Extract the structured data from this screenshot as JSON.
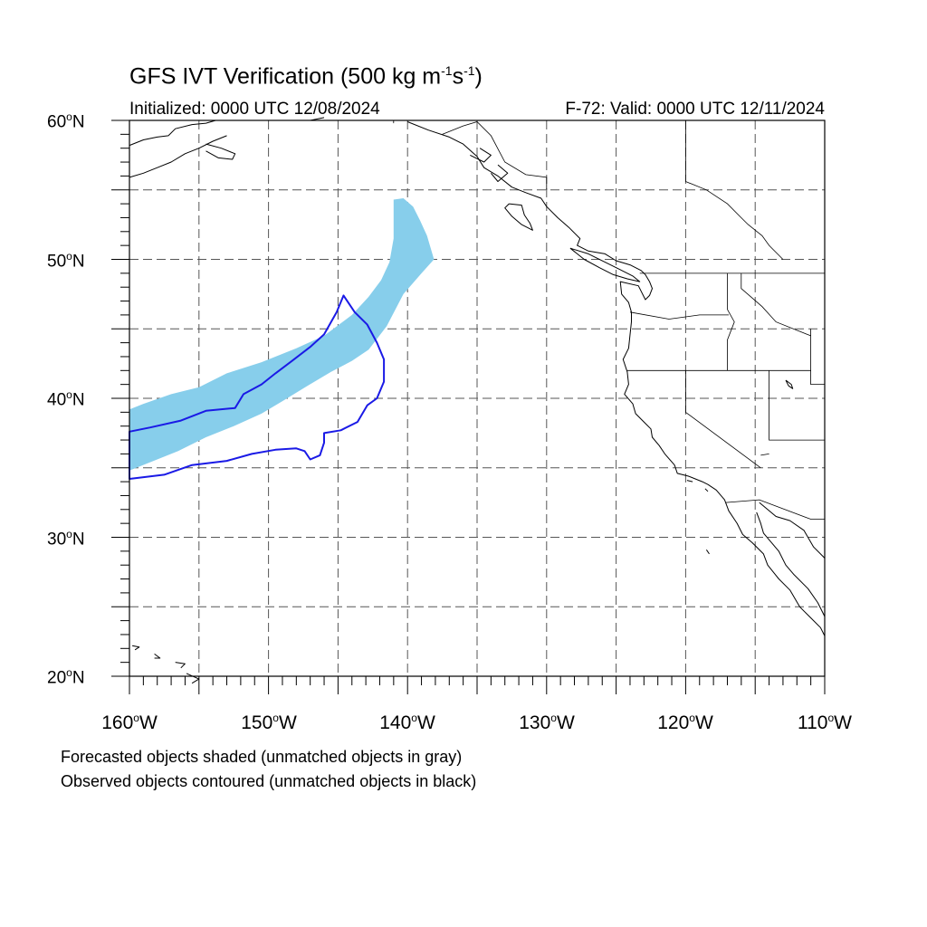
{
  "title": {
    "main": "GFS IVT Verification (500 kg m",
    "exp1": "-1",
    "mid": "s",
    "exp2": "-1",
    "end": ")"
  },
  "init_text": "Initialized: 0000 UTC 12/08/2024",
  "valid_text": "F-72: Valid: 0000 UTC 12/11/2024",
  "degree_symbol": "o",
  "lat_labels": [
    {
      "num": "60",
      "hemi": "N"
    },
    {
      "num": "50",
      "hemi": "N"
    },
    {
      "num": "40",
      "hemi": "N"
    },
    {
      "num": "30",
      "hemi": "N"
    },
    {
      "num": "20",
      "hemi": "N"
    }
  ],
  "lon_labels": [
    {
      "num": "160",
      "hemi": "W"
    },
    {
      "num": "150",
      "hemi": "W"
    },
    {
      "num": "140",
      "hemi": "W"
    },
    {
      "num": "130",
      "hemi": "W"
    },
    {
      "num": "120",
      "hemi": "W"
    },
    {
      "num": "110",
      "hemi": "W"
    }
  ],
  "notes": {
    "forecast": "Forecasted objects shaded (unmatched objects in gray)",
    "observed": "Observed objects contoured (unmatched objects in black)"
  },
  "map_extent": {
    "lon_min": -160,
    "lon_max": -110,
    "lat_min": 20,
    "lat_max": 60
  },
  "colors": {
    "forecast_fill": "#87ceeb",
    "observed_contour": "#1a1ae6",
    "coastline": "#000000",
    "grid": "#555555"
  },
  "forecast_object": [
    [
      -141.0,
      54.3
    ],
    [
      -140.3,
      54.4
    ],
    [
      -139.6,
      53.8
    ],
    [
      -139.1,
      52.8
    ],
    [
      -138.6,
      51.7
    ],
    [
      -138.1,
      50.0
    ],
    [
      -139.0,
      49.0
    ],
    [
      -140.3,
      47.5
    ],
    [
      -141.5,
      45.2
    ],
    [
      -142.8,
      43.5
    ],
    [
      -144.0,
      42.7
    ],
    [
      -145.5,
      41.9
    ],
    [
      -147.2,
      40.9
    ],
    [
      -149.0,
      39.8
    ],
    [
      -150.5,
      38.9
    ],
    [
      -152.5,
      38.0
    ],
    [
      -154.5,
      37.2
    ],
    [
      -156.5,
      36.2
    ],
    [
      -158.0,
      35.6
    ],
    [
      -160.0,
      34.8
    ],
    [
      -160.0,
      39.2
    ],
    [
      -159.0,
      39.6
    ],
    [
      -157.0,
      40.3
    ],
    [
      -155.0,
      40.8
    ],
    [
      -153.0,
      41.8
    ],
    [
      -150.5,
      42.6
    ],
    [
      -148.0,
      43.6
    ],
    [
      -146.0,
      44.5
    ],
    [
      -144.0,
      46.0
    ],
    [
      -142.8,
      47.3
    ],
    [
      -141.9,
      48.5
    ],
    [
      -141.3,
      49.8
    ],
    [
      -141.0,
      51.5
    ]
  ],
  "observed_object": [
    [
      -144.6,
      47.4
    ],
    [
      -143.8,
      46.2
    ],
    [
      -142.9,
      45.3
    ],
    [
      -142.2,
      44.0
    ],
    [
      -141.7,
      42.8
    ],
    [
      -141.7,
      41.2
    ],
    [
      -142.2,
      40.0
    ],
    [
      -142.9,
      39.5
    ],
    [
      -143.6,
      38.3
    ],
    [
      -144.8,
      37.7
    ],
    [
      -146.0,
      37.5
    ],
    [
      -146.0,
      36.8
    ],
    [
      -146.3,
      35.9
    ],
    [
      -147.0,
      35.6
    ],
    [
      -147.4,
      36.2
    ],
    [
      -148.0,
      36.4
    ],
    [
      -149.5,
      36.3
    ],
    [
      -151.2,
      36.0
    ],
    [
      -153.0,
      35.5
    ],
    [
      -155.5,
      35.2
    ],
    [
      -157.5,
      34.5
    ],
    [
      -160.0,
      34.2
    ],
    [
      -160.0,
      37.6
    ],
    [
      -158.5,
      37.9
    ],
    [
      -156.3,
      38.4
    ],
    [
      -154.5,
      39.1
    ],
    [
      -152.4,
      39.3
    ],
    [
      -151.8,
      40.3
    ],
    [
      -150.5,
      41.0
    ],
    [
      -149.5,
      41.8
    ],
    [
      -148.3,
      42.7
    ],
    [
      -147.0,
      43.7
    ],
    [
      -146.0,
      44.6
    ],
    [
      -145.1,
      46.2
    ]
  ],
  "coastlines": [
    [
      [
        -160,
        58.2
      ],
      [
        -159,
        58.6
      ],
      [
        -158.0,
        58.8
      ],
      [
        -157.2,
        58.9
      ],
      [
        -156.7,
        59.4
      ],
      [
        -155.5,
        59.7
      ],
      [
        -154.5,
        59.8
      ],
      [
        -153.8,
        60.0
      ]
    ],
    [
      [
        -160,
        55.9
      ],
      [
        -159,
        56.2
      ],
      [
        -158.0,
        56.6
      ],
      [
        -157.0,
        57.0
      ],
      [
        -156.0,
        57.6
      ],
      [
        -155.0,
        58.0
      ],
      [
        -154.0,
        58.5
      ],
      [
        -153.0,
        58.9
      ]
    ],
    [
      [
        -154.5,
        58.3
      ],
      [
        -153.4,
        58.0
      ],
      [
        -152.4,
        57.6
      ],
      [
        -152.6,
        57.2
      ],
      [
        -153.6,
        57.3
      ],
      [
        -154.5,
        57.8
      ]
    ],
    [
      [
        -149.0,
        60.0
      ],
      [
        -147.0,
        60.0
      ],
      [
        -146.0,
        60.2
      ]
    ],
    [
      [
        -140.0,
        59.9
      ],
      [
        -138.5,
        59.3
      ],
      [
        -137.0,
        58.8
      ],
      [
        -136.0,
        58.3
      ],
      [
        -135.0,
        57.4
      ],
      [
        -134.5,
        56.6
      ],
      [
        -133.5,
        56.0
      ],
      [
        -132.5,
        55.2
      ],
      [
        -131.5,
        54.8
      ],
      [
        -130.4,
        54.4
      ],
      [
        -130.0,
        53.8
      ],
      [
        -129.2,
        53.0
      ],
      [
        -128.4,
        52.3
      ],
      [
        -127.6,
        51.5
      ],
      [
        -127.8,
        51.0
      ],
      [
        -127.0,
        50.6
      ],
      [
        -125.8,
        50.4
      ],
      [
        -125.0,
        49.9
      ],
      [
        -124.0,
        49.6
      ],
      [
        -123.2,
        49.2
      ],
      [
        -122.9,
        48.9
      ],
      [
        -122.6,
        48.4
      ],
      [
        -122.4,
        47.9
      ],
      [
        -122.6,
        47.4
      ],
      [
        -122.9,
        47.1
      ],
      [
        -123.4,
        48.1
      ],
      [
        -124.7,
        48.4
      ],
      [
        -124.6,
        47.5
      ],
      [
        -124.1,
        46.9
      ],
      [
        -123.9,
        46.2
      ],
      [
        -123.9,
        45.5
      ],
      [
        -124.0,
        44.6
      ],
      [
        -124.1,
        43.6
      ],
      [
        -124.5,
        42.8
      ],
      [
        -124.2,
        41.9
      ],
      [
        -124.1,
        41.0
      ],
      [
        -124.4,
        40.3
      ],
      [
        -123.8,
        39.6
      ],
      [
        -123.6,
        38.9
      ],
      [
        -123.0,
        38.3
      ],
      [
        -122.5,
        37.8
      ],
      [
        -122.4,
        37.2
      ],
      [
        -121.9,
        36.6
      ],
      [
        -121.5,
        36.0
      ],
      [
        -120.8,
        35.2
      ],
      [
        -120.6,
        34.6
      ],
      [
        -119.8,
        34.4
      ],
      [
        -118.8,
        34.0
      ],
      [
        -118.4,
        33.8
      ],
      [
        -117.8,
        33.4
      ],
      [
        -117.2,
        32.7
      ],
      [
        -116.9,
        31.9
      ],
      [
        -116.3,
        31.0
      ],
      [
        -115.9,
        30.2
      ],
      [
        -115.2,
        29.6
      ],
      [
        -114.4,
        28.8
      ],
      [
        -114.1,
        28.0
      ],
      [
        -113.3,
        27.0
      ],
      [
        -112.5,
        26.2
      ],
      [
        -111.8,
        25.0
      ],
      [
        -111.0,
        24.2
      ],
      [
        -110.3,
        23.5
      ],
      [
        -110.0,
        22.9
      ]
    ],
    [
      [
        -114.9,
        31.8
      ],
      [
        -114.6,
        31.0
      ],
      [
        -114.4,
        30.3
      ],
      [
        -113.3,
        29.0
      ],
      [
        -112.8,
        28.0
      ],
      [
        -112.2,
        27.3
      ],
      [
        -111.2,
        26.3
      ],
      [
        -110.5,
        25.3
      ],
      [
        -110.0,
        24.3
      ]
    ],
    [
      [
        -114.7,
        32.5
      ],
      [
        -113.5,
        31.5
      ],
      [
        -112.5,
        31.2
      ],
      [
        -111.5,
        30.5
      ],
      [
        -110.8,
        29.3
      ],
      [
        -110.0,
        28.5
      ]
    ],
    [
      [
        -128.3,
        50.8
      ],
      [
        -127.0,
        50.4
      ],
      [
        -125.8,
        49.8
      ],
      [
        -124.8,
        49.3
      ],
      [
        -123.8,
        48.8
      ],
      [
        -123.3,
        48.4
      ],
      [
        -124.2,
        48.6
      ],
      [
        -125.2,
        48.9
      ],
      [
        -126.2,
        49.4
      ],
      [
        -127.3,
        50.0
      ],
      [
        -128.3,
        50.8
      ]
    ],
    [
      [
        -132.7,
        54.0
      ],
      [
        -131.8,
        53.9
      ],
      [
        -131.6,
        53.2
      ],
      [
        -131.2,
        52.6
      ],
      [
        -131.0,
        52.1
      ],
      [
        -131.8,
        52.5
      ],
      [
        -132.5,
        53.1
      ],
      [
        -133.0,
        53.7
      ],
      [
        -132.7,
        54.0
      ]
    ],
    [
      [
        -134.8,
        58.0
      ],
      [
        -134.0,
        57.5
      ],
      [
        -134.5,
        57.0
      ],
      [
        -135.5,
        57.5
      ]
    ],
    [
      [
        -133.5,
        56.8
      ],
      [
        -132.8,
        56.2
      ],
      [
        -133.5,
        55.6
      ],
      [
        -134.0,
        56.2
      ]
    ],
    [
      [
        -155.9,
        20.2
      ],
      [
        -155.0,
        19.8
      ],
      [
        -155.5,
        19.5
      ]
    ],
    [
      [
        -156.7,
        21.0
      ],
      [
        -156.0,
        20.9
      ],
      [
        -156.3,
        20.6
      ]
    ],
    [
      [
        -158.2,
        21.6
      ],
      [
        -157.8,
        21.3
      ],
      [
        -158.2,
        21.3
      ]
    ],
    [
      [
        -159.8,
        22.2
      ],
      [
        -159.3,
        22.1
      ],
      [
        -159.6,
        21.9
      ]
    ],
    [
      [
        -118.6,
        33.5
      ],
      [
        -118.4,
        33.3
      ]
    ],
    [
      [
        -119.9,
        34.1
      ],
      [
        -119.5,
        34.0
      ]
    ],
    [
      [
        -118.5,
        29.1
      ],
      [
        -118.3,
        28.8
      ]
    ],
    [
      [
        -112.8,
        41.3
      ],
      [
        -112.4,
        41.0
      ],
      [
        -112.3,
        40.7
      ],
      [
        -112.6,
        40.9
      ],
      [
        -112.8,
        41.3
      ]
    ]
  ],
  "borders": [
    [
      [
        -123.3,
        49.0
      ],
      [
        -110,
        49.0
      ]
    ],
    [
      [
        -124.0,
        46.2
      ],
      [
        -121.2,
        45.7
      ],
      [
        -119.0,
        46.0
      ],
      [
        -116.9,
        46.0
      ]
    ],
    [
      [
        -124.2,
        42.0
      ],
      [
        -111.0,
        42.0
      ]
    ],
    [
      [
        -120.0,
        42.0
      ],
      [
        -120.0,
        39.0
      ],
      [
        -114.6,
        35.0
      ]
    ],
    [
      [
        -117.0,
        49.0
      ],
      [
        -117.0,
        46.4
      ],
      [
        -116.5,
        45.5
      ],
      [
        -117.0,
        44.2
      ],
      [
        -117.0,
        42.0
      ]
    ],
    [
      [
        -116.0,
        49.0
      ],
      [
        -116.0,
        47.9
      ],
      [
        -114.5,
        46.6
      ],
      [
        -113.5,
        45.5
      ],
      [
        -111.0,
        44.5
      ]
    ],
    [
      [
        -114.0,
        42.0
      ],
      [
        -114.0,
        37.0
      ],
      [
        -110,
        37.0
      ]
    ],
    [
      [
        -114.0,
        36.0
      ],
      [
        -114.6,
        35.9
      ]
    ],
    [
      [
        -111.0,
        45.0
      ],
      [
        -111.0,
        41.0
      ],
      [
        -110,
        41.0
      ]
    ],
    [
      [
        -120.0,
        60.0
      ],
      [
        -120.0,
        55.6
      ]
    ],
    [
      [
        -120.0,
        55.6
      ],
      [
        -118.5,
        55.0
      ],
      [
        -117.0,
        54.0
      ],
      [
        -116.0,
        53.0
      ],
      [
        -115.5,
        52.5
      ],
      [
        -114.5,
        51.7
      ],
      [
        -114.0,
        51.0
      ],
      [
        -113.0,
        50.0
      ]
    ],
    [
      [
        -117.1,
        32.5
      ],
      [
        -114.7,
        32.7
      ],
      [
        -111.0,
        31.3
      ],
      [
        -110,
        31.3
      ]
    ],
    [
      [
        -141.0,
        60.0
      ],
      [
        -141.0,
        59.8
      ]
    ],
    [
      [
        -137.5,
        59.0
      ],
      [
        -136.0,
        59.6
      ],
      [
        -135.0,
        59.9
      ],
      [
        -134.0,
        58.9
      ],
      [
        -133.0,
        57.0
      ],
      [
        -131.5,
        56.1
      ],
      [
        -130.0,
        55.9
      ],
      [
        -130.0,
        55.0
      ]
    ]
  ]
}
